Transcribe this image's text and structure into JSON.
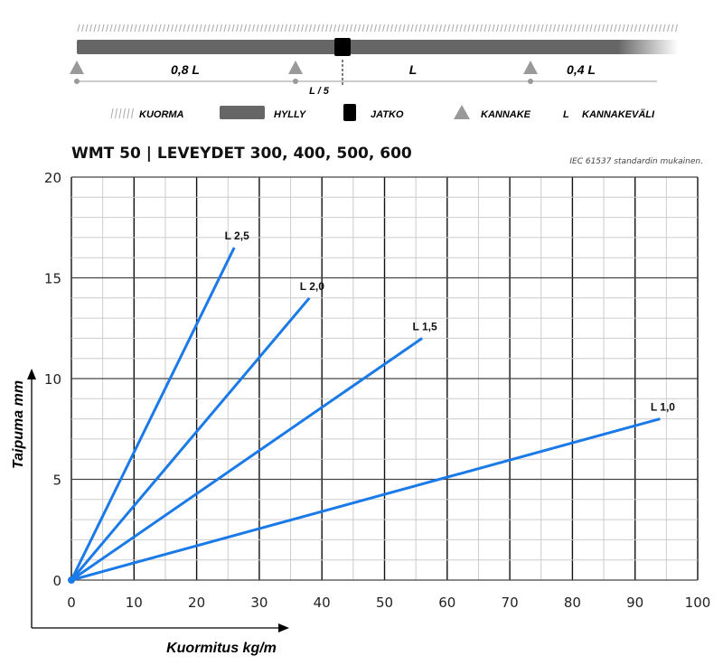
{
  "diagram": {
    "spans": [
      "0,8 L",
      "L",
      "0,4 L"
    ],
    "joint_offset_label": "L / 5",
    "legend": [
      {
        "key": "load",
        "label": "KUORMA"
      },
      {
        "key": "shelf",
        "label": "HYLLY"
      },
      {
        "key": "joint",
        "label": "JATKO"
      },
      {
        "key": "bracket",
        "label": "KANNAKE"
      },
      {
        "key": "span",
        "symbol": "L",
        "label": "KANNAKEVÄLI"
      }
    ],
    "colors": {
      "shelf": "#666666",
      "joint": "#000000",
      "bracket": "#999999"
    }
  },
  "chart_data": {
    "type": "line",
    "title": "WMT 50 | LEVEYDET 300, 400, 500, 600",
    "subtitle": "IEC 61537 standardin mukainen.",
    "xlabel": "Kuormitus kg/m",
    "ylabel": "Taipuma mm",
    "xlim": [
      0,
      100
    ],
    "ylim": [
      0,
      20
    ],
    "xticks": [
      0,
      10,
      20,
      30,
      40,
      50,
      60,
      70,
      80,
      90,
      100
    ],
    "yticks": [
      0,
      5,
      10,
      15,
      20
    ],
    "grid": true,
    "line_color": "#1a7ae8",
    "series": [
      {
        "name": "L 2,5",
        "x": [
          0,
          26
        ],
        "y": [
          0,
          16.5
        ]
      },
      {
        "name": "L 2,0",
        "x": [
          0,
          38
        ],
        "y": [
          0,
          14
        ]
      },
      {
        "name": "L 1,5",
        "x": [
          0,
          56
        ],
        "y": [
          0,
          12
        ]
      },
      {
        "name": "L 1,0",
        "x": [
          0,
          94
        ],
        "y": [
          0,
          8
        ]
      }
    ]
  }
}
